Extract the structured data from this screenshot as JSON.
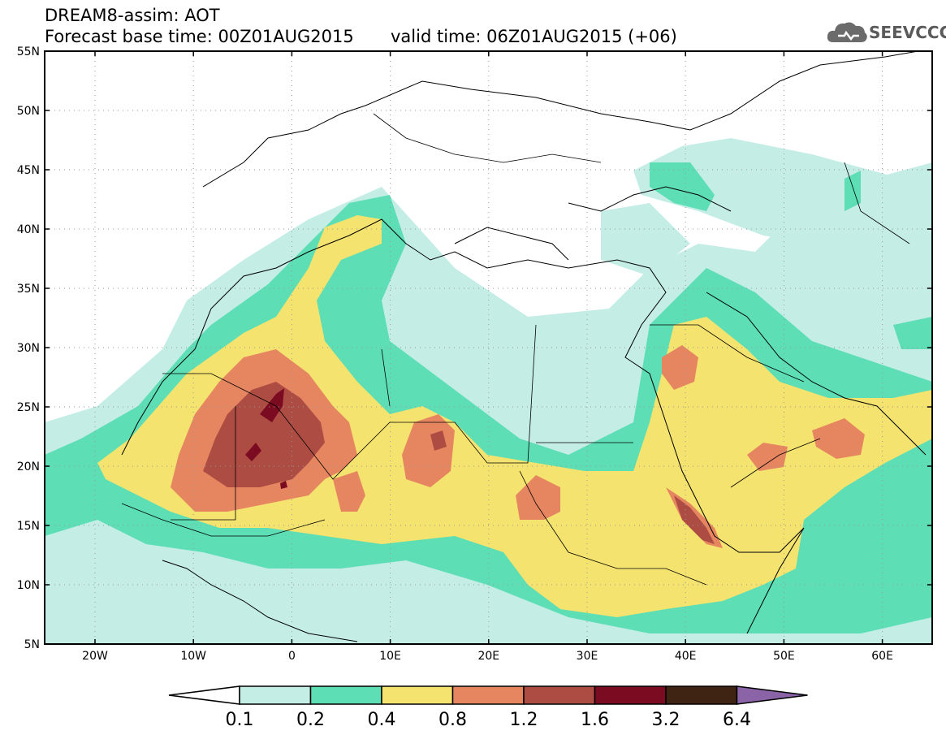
{
  "header": {
    "title_line1": "DREAM8-assim: AOT",
    "title_line2": "Forecast base time: 00Z01AUG2015",
    "valid_time": "valid time: 06Z01AUG2015 (+06)",
    "logo_text": "SEEVCCC"
  },
  "map": {
    "lat_labels": [
      "55N",
      "50N",
      "45N",
      "40N",
      "35N",
      "30N",
      "25N",
      "20N",
      "15N",
      "10N",
      "5N"
    ],
    "lon_labels": [
      "20W",
      "10W",
      "0",
      "10E",
      "20E",
      "30E",
      "40E",
      "50E",
      "60E"
    ]
  },
  "legend": {
    "thresholds": [
      "0.1",
      "0.2",
      "0.4",
      "0.8",
      "1.2",
      "1.6",
      "3.2",
      "6.4"
    ],
    "colors": [
      "#ffffff",
      "#c4ede6",
      "#5ddeb4",
      "#f5e36f",
      "#e68661",
      "#ac4c43",
      "#7b0b21",
      "#3f2413",
      "#8a64a6"
    ]
  },
  "icons": [
    "cloud-logo-icon"
  ]
}
